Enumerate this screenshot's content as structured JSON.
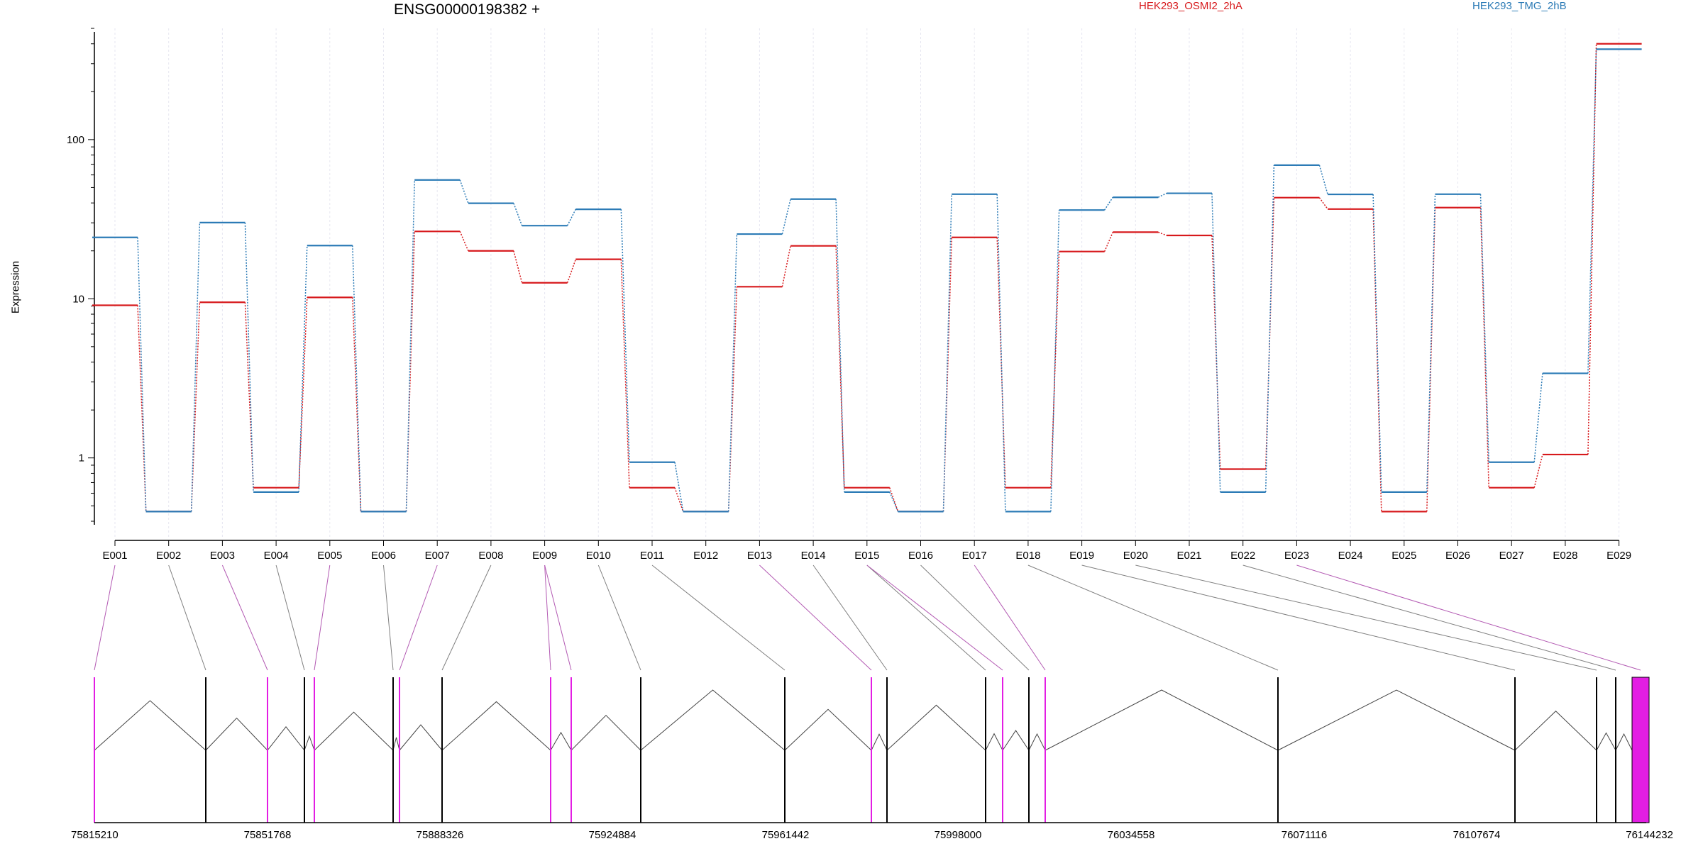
{
  "chart_data": {
    "type": "line",
    "title": "ENSG00000198382 +",
    "ylabel": "Expression",
    "yscale": "log",
    "ylim": [
      0.38,
      500
    ],
    "yticks": [
      {
        "v": 1,
        "label": "1"
      },
      {
        "v": 10,
        "label": "10"
      },
      {
        "v": 100,
        "label": "100"
      }
    ],
    "categories": [
      "E001",
      "E002",
      "E003",
      "E004",
      "E005",
      "E006",
      "E007",
      "E008",
      "E009",
      "E010",
      "E011",
      "E012",
      "E013",
      "E014",
      "E015",
      "E016",
      "E017",
      "E018",
      "E019",
      "E020",
      "E021",
      "E022",
      "E023",
      "E024",
      "E025",
      "E026",
      "E027",
      "E028",
      "E029"
    ],
    "series": [
      {
        "name": "HEK293_OSMI2_2hA",
        "color": "#d7191c",
        "values": [
          9.1,
          0.46,
          9.5,
          0.65,
          10.2,
          0.46,
          26.5,
          20,
          12.6,
          17.7,
          0.65,
          0.46,
          11.9,
          21.5,
          0.65,
          0.46,
          24.3,
          0.65,
          19.8,
          26.2,
          25,
          0.85,
          43.2,
          36.6,
          0.46,
          37.4,
          0.65,
          1.05,
          400
        ]
      },
      {
        "name": "HEK293_TMG_2hB",
        "color": "#2c7bb6",
        "values": [
          24.3,
          0.46,
          30.1,
          0.61,
          21.6,
          0.46,
          55.8,
          39.8,
          28.8,
          36.5,
          0.94,
          0.46,
          25.5,
          42.3,
          0.61,
          0.46,
          45.4,
          0.46,
          36.1,
          43.4,
          46,
          0.61,
          69.1,
          45.3,
          0.61,
          45.4,
          0.94,
          3.4,
          370
        ]
      }
    ],
    "genomic_axis": {
      "ticks": [
        "75815210",
        "75851768",
        "75888326",
        "75924884",
        "75961442",
        "75998000",
        "76034558",
        "76071116",
        "76107674",
        "76144232"
      ]
    },
    "exon_colors": {
      "highlight": "#e31ee3",
      "normal": "#000000",
      "link_highlight": "#b35ab3",
      "link_normal": "#808080"
    }
  }
}
